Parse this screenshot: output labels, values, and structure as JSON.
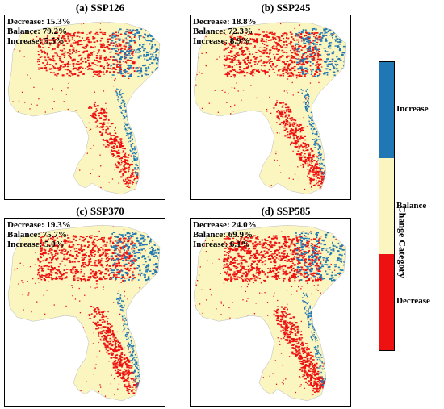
{
  "panels": [
    {
      "title": "(a) SSP126",
      "decrease": "Decrease: 15.3%",
      "balance": "Balance: 79.2%",
      "increase": "Increase: 5.5%"
    },
    {
      "title": "(b) SSP245",
      "decrease": "Decrease: 18.8%",
      "balance": "Balance: 72.3%",
      "increase": "Increase: 8.9%"
    },
    {
      "title": "(c) SSP370",
      "decrease": "Decrease: 19.3%",
      "balance": "Balance: 75.7%",
      "increase": "Increase: 5.0%"
    },
    {
      "title": "(d) SSP585",
      "decrease": "Decrease: 24.0%",
      "balance": "Balance: 69.9%",
      "increase": "Increase: 6.1%"
    }
  ],
  "legend": {
    "title": "Change Category",
    "items": [
      {
        "label": "Increase",
        "color": "#1f77b4"
      },
      {
        "label": "Balance",
        "color": "#fbf6c0"
      },
      {
        "label": "Decrease",
        "color": "#ee1111"
      }
    ]
  },
  "colors": {
    "increase": "#1f77b4",
    "balance": "#fbf6c0",
    "decrease": "#ee1111"
  }
}
